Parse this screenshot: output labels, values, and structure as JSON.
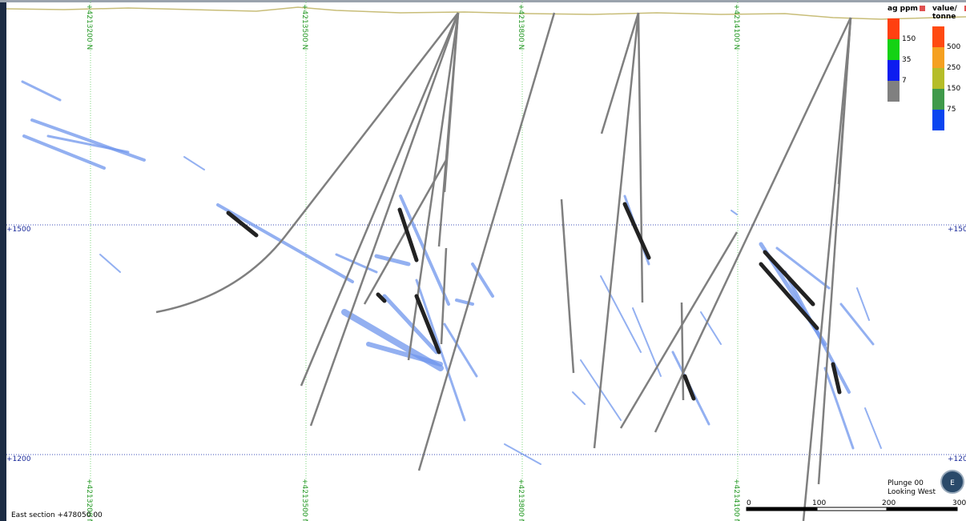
{
  "northing_labels": [
    "+4213200 N",
    "+4213500 N",
    "+4213800 N",
    "+4214100 N"
  ],
  "elevation_labels": [
    "+1500",
    "+1200"
  ],
  "legends": [
    {
      "title_lines": [
        "ag ppm"
      ],
      "labels": [
        "150",
        "35",
        "7"
      ]
    },
    {
      "title_lines": [
        "value/",
        "tonne"
      ],
      "labels": [
        "500",
        "250",
        "150",
        "75"
      ]
    }
  ],
  "view": {
    "plunge": "Plunge 00",
    "direction": "Looking West",
    "compass": "E"
  },
  "scale_labels": [
    "0",
    "100",
    "200",
    "300"
  ],
  "section": "East section +478050.00"
}
